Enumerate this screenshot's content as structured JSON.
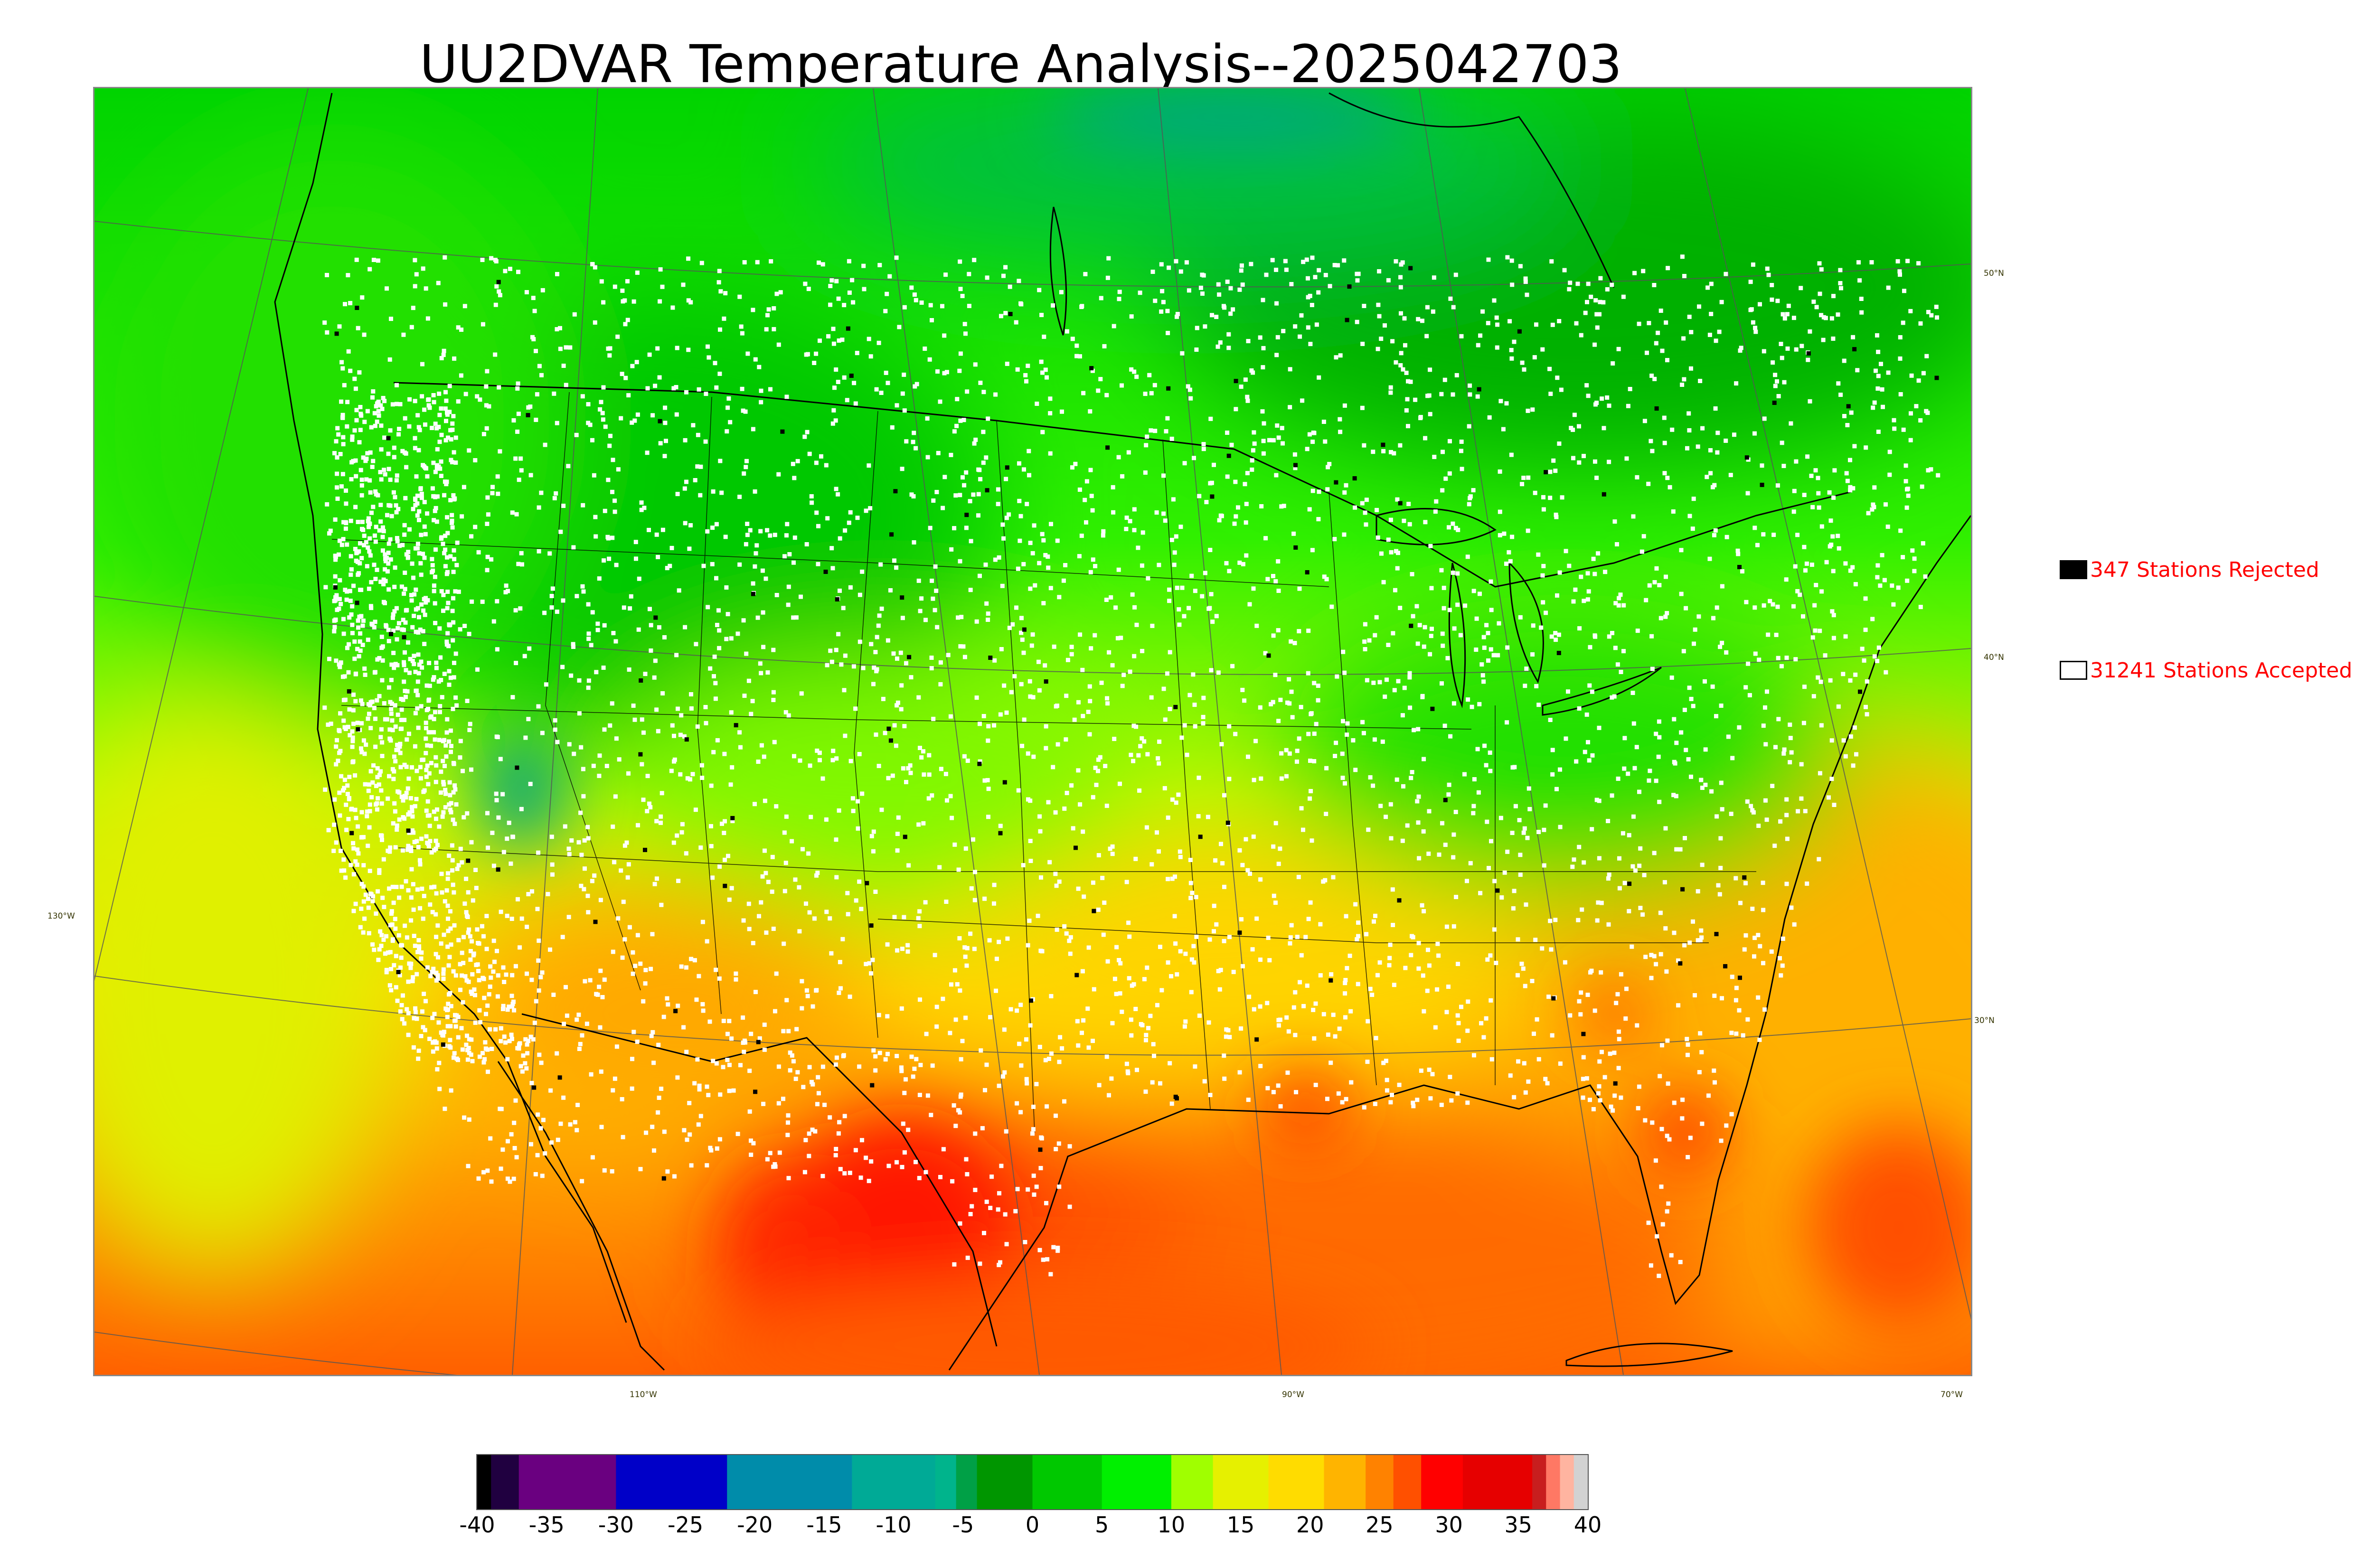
{
  "title": "UU2DVAR Temperature Analysis--2025042703",
  "map": {
    "latitude_labels": [
      "50°N",
      "40°N",
      "30°N"
    ],
    "longitude_labels": [
      "130°W",
      "110°W",
      "90°W",
      "70°W"
    ],
    "colors": {
      "cold_green": "#00b800",
      "mid_green": "#00e000",
      "bright_green": "#40ff00",
      "yellow_green": "#c8ff00",
      "yellow": "#ffe600",
      "orange": "#ffa000",
      "orange_red": "#ff6a00",
      "red": "#ff1a00",
      "teal": "#00a08c",
      "station_accepted": "#ffffff",
      "station_rejected": "#000000",
      "boundary_line": "#000000"
    }
  },
  "legend": {
    "rejected": {
      "label": "347 Stations Rejected",
      "count": 347,
      "swatch_color": "#000000"
    },
    "accepted": {
      "label": "31241 Stations Accepted",
      "count": 31241,
      "swatch_color": "#ffffff"
    },
    "text_color": "#ff0000"
  },
  "colorbar": {
    "min": -40,
    "max": 40,
    "tick_labels": [
      "-40",
      "-35",
      "-30",
      "-25",
      "-20",
      "-15",
      "-10",
      "-5",
      "0",
      "5",
      "10",
      "15",
      "20",
      "25",
      "30",
      "35",
      "40"
    ],
    "segments": [
      {
        "from": -40,
        "to": -39,
        "color": "#000000"
      },
      {
        "from": -39,
        "to": -37,
        "color": "#200040"
      },
      {
        "from": -37,
        "to": -30,
        "color": "#6a0080"
      },
      {
        "from": -30,
        "to": -22,
        "color": "#0000c8"
      },
      {
        "from": -22,
        "to": -13,
        "color": "#008caa"
      },
      {
        "from": -13,
        "to": -7,
        "color": "#00aa96"
      },
      {
        "from": -7,
        "to": -5.5,
        "color": "#00b48c"
      },
      {
        "from": -5.5,
        "to": -4,
        "color": "#00a046"
      },
      {
        "from": -4,
        "to": 0,
        "color": "#009600"
      },
      {
        "from": 0,
        "to": 5,
        "color": "#00c800"
      },
      {
        "from": 5,
        "to": 10,
        "color": "#00f000"
      },
      {
        "from": 10,
        "to": 13,
        "color": "#a0ff00"
      },
      {
        "from": 13,
        "to": 17,
        "color": "#e6f000"
      },
      {
        "from": 17,
        "to": 21,
        "color": "#ffdc00"
      },
      {
        "from": 21,
        "to": 24,
        "color": "#ffb400"
      },
      {
        "from": 24,
        "to": 26,
        "color": "#ff8200"
      },
      {
        "from": 26,
        "to": 28,
        "color": "#ff5000"
      },
      {
        "from": 28,
        "to": 31,
        "color": "#ff0000"
      },
      {
        "from": 31,
        "to": 36,
        "color": "#e60000"
      },
      {
        "from": 36,
        "to": 37,
        "color": "#c81e1e"
      },
      {
        "from": 37,
        "to": 38,
        "color": "#ff7864"
      },
      {
        "from": 38,
        "to": 39,
        "color": "#ffb4a0"
      },
      {
        "from": 39,
        "to": 40,
        "color": "#d2d2d2"
      }
    ]
  }
}
